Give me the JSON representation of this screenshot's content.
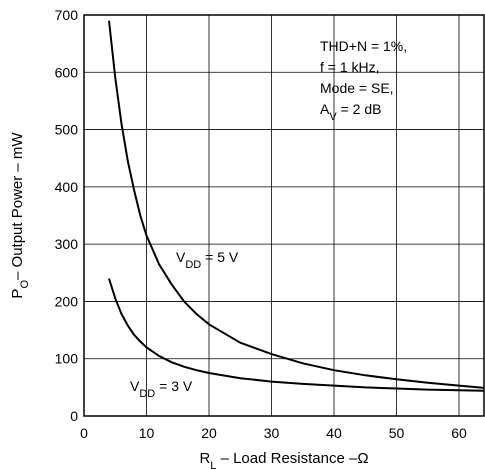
{
  "chart_data": {
    "type": "line",
    "xlabel": {
      "main": "R",
      "sub": "L",
      "rest": " – Load Resistance  –Ω"
    },
    "ylabel": {
      "main": "P",
      "sub": "O",
      "rest": "– Output Power  – mW"
    },
    "xlim": [
      0,
      64
    ],
    "ylim": [
      0,
      700
    ],
    "xticks": [
      0,
      10,
      20,
      30,
      40,
      50,
      60
    ],
    "yticks": [
      0,
      100,
      200,
      300,
      400,
      500,
      600,
      700
    ],
    "grid": true,
    "annotations": [
      {
        "lines": [
          "THD+N = 1%,",
          "f = 1 kHz,",
          "Mode = SE,"
        ]
      },
      {
        "main": "A",
        "sub": "V",
        "rest": " = 2 dB"
      }
    ],
    "series": [
      {
        "label": {
          "main": "V",
          "sub": "DD",
          "rest": " = 5 V"
        },
        "x": [
          4,
          5,
          6,
          7,
          8,
          9,
          10,
          11,
          12,
          14,
          16,
          18,
          20,
          25,
          30,
          35,
          40,
          45,
          50,
          55,
          60,
          64
        ],
        "y": [
          690,
          590,
          510,
          445,
          395,
          350,
          315,
          290,
          265,
          230,
          200,
          178,
          160,
          128,
          108,
          92,
          80,
          71,
          64,
          58,
          53,
          49
        ]
      },
      {
        "label": {
          "main": "V",
          "sub": "DD",
          "rest": " = 3 V"
        },
        "x": [
          4,
          5,
          6,
          7,
          8,
          9,
          10,
          12,
          14,
          16,
          18,
          20,
          25,
          30,
          35,
          40,
          45,
          50,
          55,
          60,
          64
        ],
        "y": [
          240,
          205,
          178,
          158,
          142,
          130,
          120,
          105,
          94,
          86,
          80,
          75,
          66,
          60,
          56,
          53,
          50,
          48,
          46,
          45,
          44
        ]
      }
    ]
  }
}
